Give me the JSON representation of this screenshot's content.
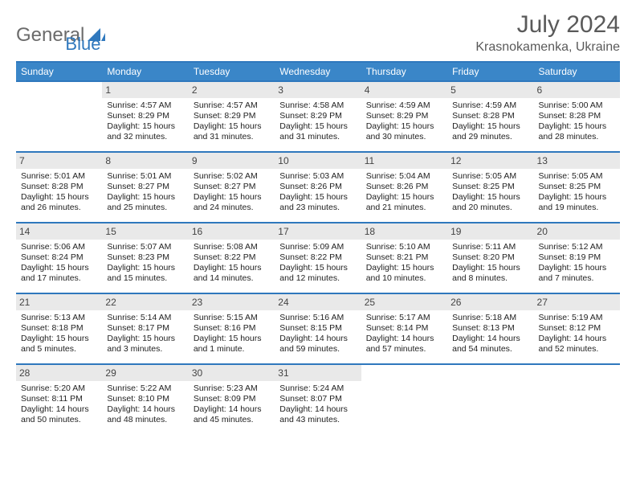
{
  "brand": {
    "word1": "General",
    "word2": "Blue"
  },
  "title": "July 2024",
  "location": "Krasnokamenka, Ukraine",
  "colors": {
    "header_bg": "#3a86c8",
    "header_border": "#2f78bd",
    "daynum_bg": "#e9e9e9",
    "text": "#333333",
    "brand_gray": "#6b6b6b",
    "brand_blue": "#2f78bd"
  },
  "days_of_week": [
    "Sunday",
    "Monday",
    "Tuesday",
    "Wednesday",
    "Thursday",
    "Friday",
    "Saturday"
  ],
  "weeks": [
    [
      {
        "day": "",
        "sunrise": "",
        "sunset": "",
        "daylight": ""
      },
      {
        "day": "1",
        "sunrise": "Sunrise: 4:57 AM",
        "sunset": "Sunset: 8:29 PM",
        "daylight": "Daylight: 15 hours and 32 minutes."
      },
      {
        "day": "2",
        "sunrise": "Sunrise: 4:57 AM",
        "sunset": "Sunset: 8:29 PM",
        "daylight": "Daylight: 15 hours and 31 minutes."
      },
      {
        "day": "3",
        "sunrise": "Sunrise: 4:58 AM",
        "sunset": "Sunset: 8:29 PM",
        "daylight": "Daylight: 15 hours and 31 minutes."
      },
      {
        "day": "4",
        "sunrise": "Sunrise: 4:59 AM",
        "sunset": "Sunset: 8:29 PM",
        "daylight": "Daylight: 15 hours and 30 minutes."
      },
      {
        "day": "5",
        "sunrise": "Sunrise: 4:59 AM",
        "sunset": "Sunset: 8:28 PM",
        "daylight": "Daylight: 15 hours and 29 minutes."
      },
      {
        "day": "6",
        "sunrise": "Sunrise: 5:00 AM",
        "sunset": "Sunset: 8:28 PM",
        "daylight": "Daylight: 15 hours and 28 minutes."
      }
    ],
    [
      {
        "day": "7",
        "sunrise": "Sunrise: 5:01 AM",
        "sunset": "Sunset: 8:28 PM",
        "daylight": "Daylight: 15 hours and 26 minutes."
      },
      {
        "day": "8",
        "sunrise": "Sunrise: 5:01 AM",
        "sunset": "Sunset: 8:27 PM",
        "daylight": "Daylight: 15 hours and 25 minutes."
      },
      {
        "day": "9",
        "sunrise": "Sunrise: 5:02 AM",
        "sunset": "Sunset: 8:27 PM",
        "daylight": "Daylight: 15 hours and 24 minutes."
      },
      {
        "day": "10",
        "sunrise": "Sunrise: 5:03 AM",
        "sunset": "Sunset: 8:26 PM",
        "daylight": "Daylight: 15 hours and 23 minutes."
      },
      {
        "day": "11",
        "sunrise": "Sunrise: 5:04 AM",
        "sunset": "Sunset: 8:26 PM",
        "daylight": "Daylight: 15 hours and 21 minutes."
      },
      {
        "day": "12",
        "sunrise": "Sunrise: 5:05 AM",
        "sunset": "Sunset: 8:25 PM",
        "daylight": "Daylight: 15 hours and 20 minutes."
      },
      {
        "day": "13",
        "sunrise": "Sunrise: 5:05 AM",
        "sunset": "Sunset: 8:25 PM",
        "daylight": "Daylight: 15 hours and 19 minutes."
      }
    ],
    [
      {
        "day": "14",
        "sunrise": "Sunrise: 5:06 AM",
        "sunset": "Sunset: 8:24 PM",
        "daylight": "Daylight: 15 hours and 17 minutes."
      },
      {
        "day": "15",
        "sunrise": "Sunrise: 5:07 AM",
        "sunset": "Sunset: 8:23 PM",
        "daylight": "Daylight: 15 hours and 15 minutes."
      },
      {
        "day": "16",
        "sunrise": "Sunrise: 5:08 AM",
        "sunset": "Sunset: 8:22 PM",
        "daylight": "Daylight: 15 hours and 14 minutes."
      },
      {
        "day": "17",
        "sunrise": "Sunrise: 5:09 AM",
        "sunset": "Sunset: 8:22 PM",
        "daylight": "Daylight: 15 hours and 12 minutes."
      },
      {
        "day": "18",
        "sunrise": "Sunrise: 5:10 AM",
        "sunset": "Sunset: 8:21 PM",
        "daylight": "Daylight: 15 hours and 10 minutes."
      },
      {
        "day": "19",
        "sunrise": "Sunrise: 5:11 AM",
        "sunset": "Sunset: 8:20 PM",
        "daylight": "Daylight: 15 hours and 8 minutes."
      },
      {
        "day": "20",
        "sunrise": "Sunrise: 5:12 AM",
        "sunset": "Sunset: 8:19 PM",
        "daylight": "Daylight: 15 hours and 7 minutes."
      }
    ],
    [
      {
        "day": "21",
        "sunrise": "Sunrise: 5:13 AM",
        "sunset": "Sunset: 8:18 PM",
        "daylight": "Daylight: 15 hours and 5 minutes."
      },
      {
        "day": "22",
        "sunrise": "Sunrise: 5:14 AM",
        "sunset": "Sunset: 8:17 PM",
        "daylight": "Daylight: 15 hours and 3 minutes."
      },
      {
        "day": "23",
        "sunrise": "Sunrise: 5:15 AM",
        "sunset": "Sunset: 8:16 PM",
        "daylight": "Daylight: 15 hours and 1 minute."
      },
      {
        "day": "24",
        "sunrise": "Sunrise: 5:16 AM",
        "sunset": "Sunset: 8:15 PM",
        "daylight": "Daylight: 14 hours and 59 minutes."
      },
      {
        "day": "25",
        "sunrise": "Sunrise: 5:17 AM",
        "sunset": "Sunset: 8:14 PM",
        "daylight": "Daylight: 14 hours and 57 minutes."
      },
      {
        "day": "26",
        "sunrise": "Sunrise: 5:18 AM",
        "sunset": "Sunset: 8:13 PM",
        "daylight": "Daylight: 14 hours and 54 minutes."
      },
      {
        "day": "27",
        "sunrise": "Sunrise: 5:19 AM",
        "sunset": "Sunset: 8:12 PM",
        "daylight": "Daylight: 14 hours and 52 minutes."
      }
    ],
    [
      {
        "day": "28",
        "sunrise": "Sunrise: 5:20 AM",
        "sunset": "Sunset: 8:11 PM",
        "daylight": "Daylight: 14 hours and 50 minutes."
      },
      {
        "day": "29",
        "sunrise": "Sunrise: 5:22 AM",
        "sunset": "Sunset: 8:10 PM",
        "daylight": "Daylight: 14 hours and 48 minutes."
      },
      {
        "day": "30",
        "sunrise": "Sunrise: 5:23 AM",
        "sunset": "Sunset: 8:09 PM",
        "daylight": "Daylight: 14 hours and 45 minutes."
      },
      {
        "day": "31",
        "sunrise": "Sunrise: 5:24 AM",
        "sunset": "Sunset: 8:07 PM",
        "daylight": "Daylight: 14 hours and 43 minutes."
      },
      {
        "day": "",
        "sunrise": "",
        "sunset": "",
        "daylight": ""
      },
      {
        "day": "",
        "sunrise": "",
        "sunset": "",
        "daylight": ""
      },
      {
        "day": "",
        "sunrise": "",
        "sunset": "",
        "daylight": ""
      }
    ]
  ]
}
